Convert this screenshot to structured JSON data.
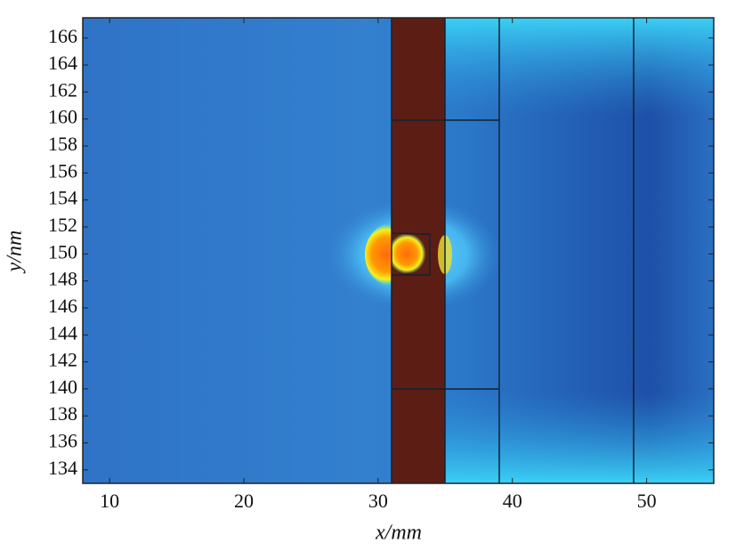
{
  "chart_data": {
    "type": "field",
    "xlabel": "x/mm",
    "ylabel": "y/nm",
    "xlim": [
      8,
      55
    ],
    "xticks": [
      10,
      20,
      30,
      40,
      50
    ],
    "ylim": [
      133,
      167.5
    ],
    "yticks": [
      134,
      136,
      138,
      140,
      142,
      144,
      146,
      148,
      150,
      152,
      154,
      156,
      158,
      160,
      162,
      164,
      166
    ]
  }
}
